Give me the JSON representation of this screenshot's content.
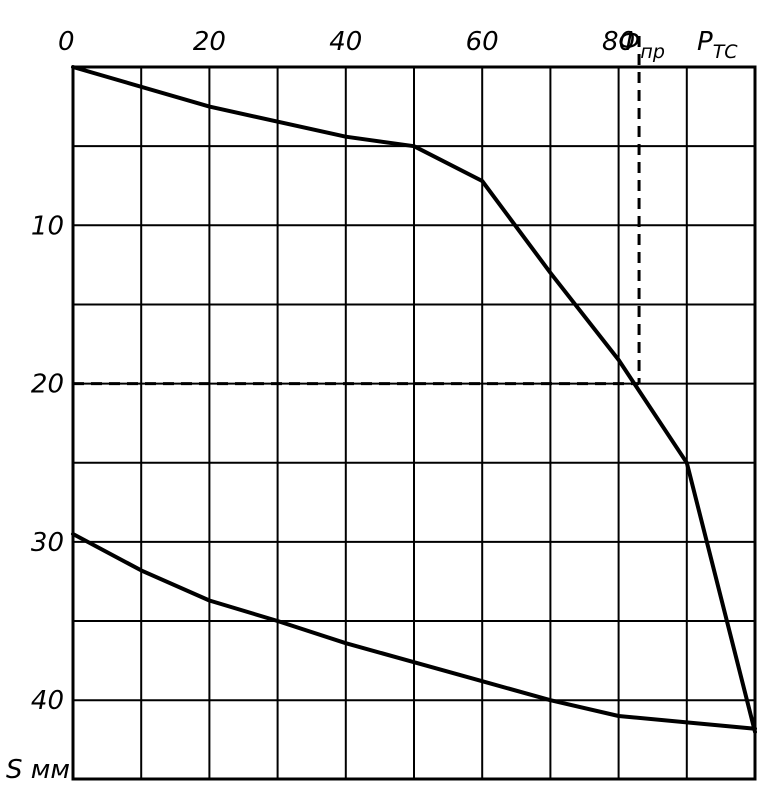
{
  "chart_data": {
    "type": "line",
    "title": "",
    "x_ticks": [
      "0",
      "20",
      "40",
      "60",
      "80"
    ],
    "y_ticks": [
      "10",
      "20",
      "30",
      "40"
    ],
    "ylabel": "S мм",
    "xlim": [
      0,
      100
    ],
    "ylim": [
      0,
      45
    ],
    "y_inverted": true,
    "grid": true,
    "annotations": {
      "phi_pr": {
        "main": "Ф",
        "sub": "пр",
        "x": 83
      },
      "p_tc": {
        "main": "P",
        "sub": "ТС"
      }
    },
    "reference_lines": {
      "horizontal_y": 20,
      "vertical_x": 83
    },
    "series": [
      {
        "x": [
          0,
          20,
          40,
          50,
          60,
          70,
          80,
          90,
          100
        ],
        "y": [
          0,
          2.5,
          4.4,
          5.0,
          7.2,
          13.0,
          18.5,
          25.0,
          42.0
        ]
      },
      {
        "x": [
          0,
          10,
          20,
          30,
          40,
          50,
          60,
          70,
          80,
          90,
          100
        ],
        "y": [
          29.5,
          31.8,
          33.7,
          35.0,
          36.4,
          37.6,
          38.8,
          40.0,
          41.0,
          41.4,
          41.8
        ]
      }
    ]
  }
}
